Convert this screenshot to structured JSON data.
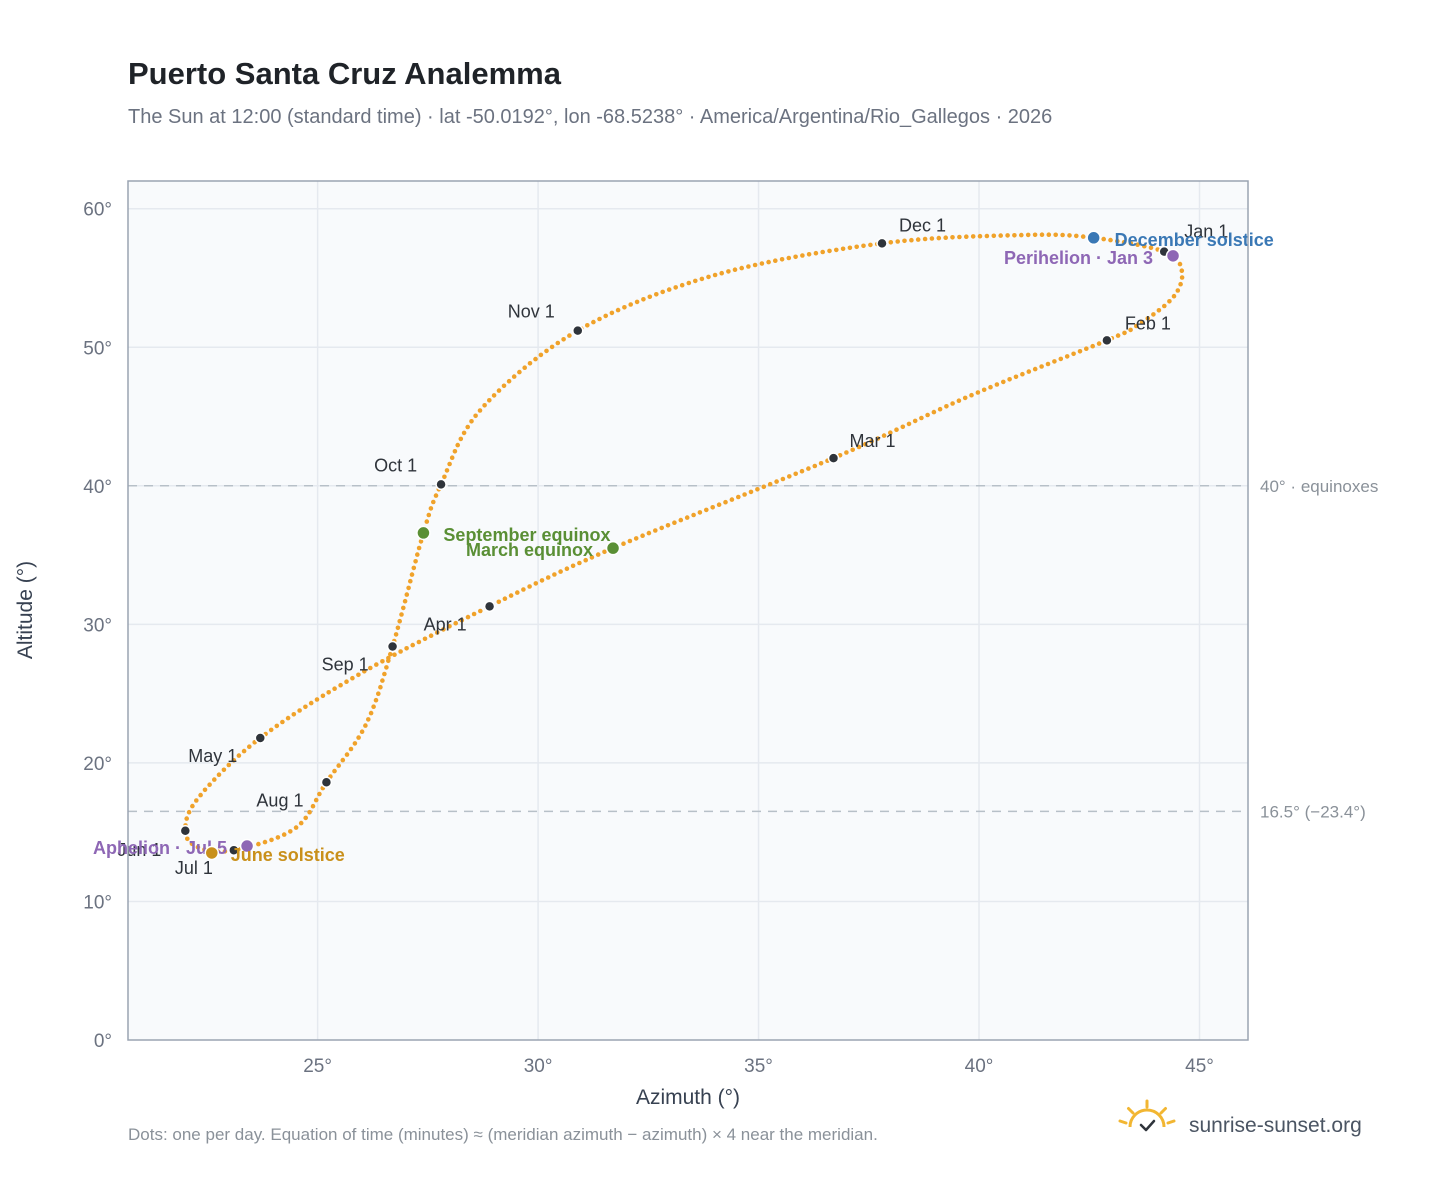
{
  "chart_data": {
    "type": "scatter",
    "title": "Puerto Santa Cruz Analemma",
    "subtitle": "The Sun at 12:00 (standard time) · lat -50.0192°, lon -68.5238° · America/Argentina/Rio_Gallegos · 2026",
    "xlabel": "Azimuth (°)",
    "ylabel": "Altitude (°)",
    "xlim": [
      20.7,
      46.1
    ],
    "ylim": [
      0,
      62
    ],
    "x_ticks": [
      {
        "value": 25,
        "label": "25°"
      },
      {
        "value": 30,
        "label": "30°"
      },
      {
        "value": 35,
        "label": "35°"
      },
      {
        "value": 40,
        "label": "40°"
      },
      {
        "value": 45,
        "label": "45°"
      }
    ],
    "y_ticks": [
      {
        "value": 0,
        "label": "0°"
      },
      {
        "value": 10,
        "label": "10°"
      },
      {
        "value": 20,
        "label": "20°"
      },
      {
        "value": 30,
        "label": "30°"
      },
      {
        "value": 40,
        "label": "40°"
      },
      {
        "value": 50,
        "label": "50°"
      },
      {
        "value": 60,
        "label": "60°"
      }
    ],
    "grid": true,
    "reference_lines": [
      {
        "value": 40.0,
        "label": "40° · equinoxes"
      },
      {
        "value": 16.5,
        "label": "16.5° (−23.4°)"
      }
    ],
    "months": [
      {
        "label": "Jan 1",
        "az": 44.2,
        "alt": 56.9
      },
      {
        "label": "Feb 1",
        "az": 42.9,
        "alt": 50.5
      },
      {
        "label": "Mar 1",
        "az": 36.7,
        "alt": 42.0
      },
      {
        "label": "Apr 1",
        "az": 28.9,
        "alt": 31.3
      },
      {
        "label": "May 1",
        "az": 23.7,
        "alt": 21.8
      },
      {
        "label": "Jun 1",
        "az": 22.0,
        "alt": 15.1
      },
      {
        "label": "Jul 1",
        "az": 23.1,
        "alt": 13.7
      },
      {
        "label": "Aug 1",
        "az": 25.2,
        "alt": 18.6
      },
      {
        "label": "Sep 1",
        "az": 26.7,
        "alt": 28.4
      },
      {
        "label": "Oct 1",
        "az": 27.8,
        "alt": 40.1
      },
      {
        "label": "Nov 1",
        "az": 30.9,
        "alt": 51.2
      },
      {
        "label": "Dec 1",
        "az": 37.8,
        "alt": 57.5
      }
    ],
    "path_points": [
      {
        "az": 44.2,
        "alt": 56.9
      },
      {
        "az": 44.6,
        "alt": 55.5
      },
      {
        "az": 44.4,
        "alt": 53.6
      },
      {
        "az": 43.6,
        "alt": 51.6
      },
      {
        "az": 42.9,
        "alt": 50.5
      },
      {
        "az": 39.8,
        "alt": 46.5
      },
      {
        "az": 36.7,
        "alt": 42.0
      },
      {
        "az": 31.7,
        "alt": 35.5
      },
      {
        "az": 28.9,
        "alt": 31.3
      },
      {
        "az": 26.0,
        "alt": 26.5
      },
      {
        "az": 23.7,
        "alt": 21.8
      },
      {
        "az": 22.3,
        "alt": 17.5
      },
      {
        "az": 22.0,
        "alt": 15.1
      },
      {
        "az": 22.3,
        "alt": 13.9
      },
      {
        "az": 23.1,
        "alt": 13.7
      },
      {
        "az": 24.5,
        "alt": 15.3
      },
      {
        "az": 25.2,
        "alt": 18.6
      },
      {
        "az": 26.1,
        "alt": 22.8
      },
      {
        "az": 26.7,
        "alt": 28.4
      },
      {
        "az": 27.4,
        "alt": 36.6
      },
      {
        "az": 27.8,
        "alt": 40.1
      },
      {
        "az": 28.7,
        "alt": 45.5
      },
      {
        "az": 30.9,
        "alt": 51.2
      },
      {
        "az": 34.0,
        "alt": 55.2
      },
      {
        "az": 37.8,
        "alt": 57.5
      },
      {
        "az": 41.0,
        "alt": 58.1
      },
      {
        "az": 42.6,
        "alt": 57.9
      },
      {
        "az": 44.2,
        "alt": 56.9
      }
    ],
    "events": [
      {
        "label": "December solstice",
        "az": 42.6,
        "alt": 57.9,
        "color": "#3a78b5"
      },
      {
        "label": "Perihelion · Jan 3",
        "az": 44.4,
        "alt": 56.6,
        "color": "#8e67b5"
      },
      {
        "label": "September equinox",
        "az": 27.4,
        "alt": 36.6,
        "color": "#5a8f35"
      },
      {
        "label": "March equinox",
        "az": 31.7,
        "alt": 35.5,
        "color": "#5a8f35"
      },
      {
        "label": "Aphelion · Jul 5",
        "az": 23.4,
        "alt": 14.0,
        "color": "#8e67b5"
      },
      {
        "label": "June solstice",
        "az": 22.6,
        "alt": 13.5,
        "color": "#c9901b"
      }
    ],
    "colors": {
      "path": "#f0a22a",
      "month_marker": "#2f343b",
      "grid": "#e5e9ef",
      "plot_background": "#f8fafc",
      "frame": "#9aa4b2",
      "reference_line": "#b7c0c8"
    }
  },
  "footnote": "Dots: one per day. Equation of time (minutes) ≈ (meridian azimuth − azimuth) × 4 near the meridian.",
  "brand": {
    "name": "sunrise-sunset.org",
    "icon": "sun-check-icon",
    "icon_color": "#f2b632"
  }
}
